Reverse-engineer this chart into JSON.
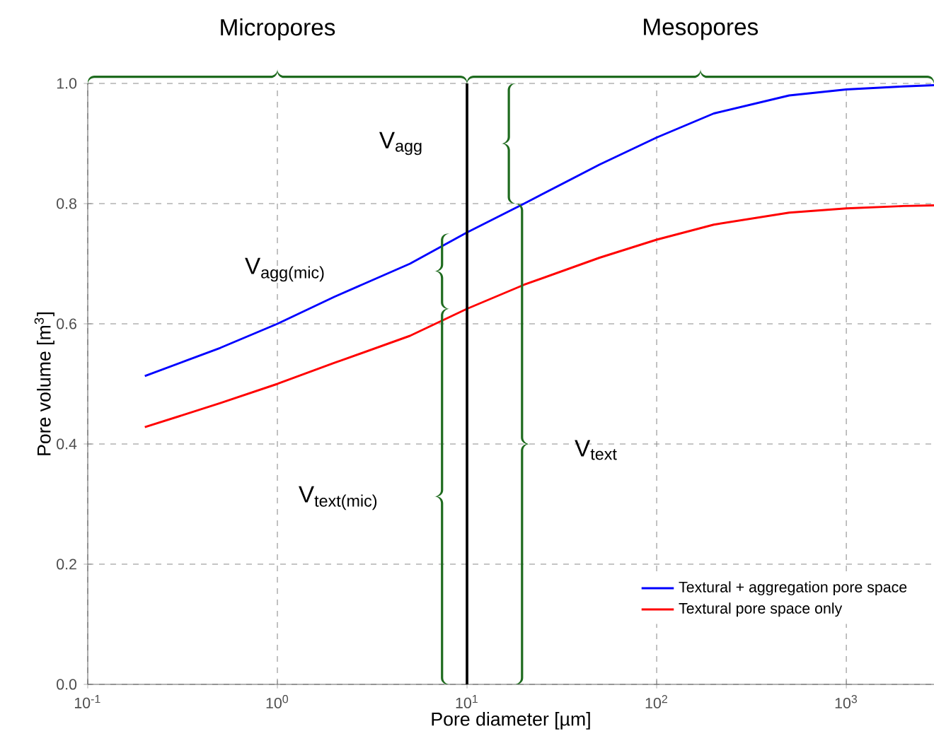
{
  "chart_data": {
    "type": "line",
    "xlabel": "Pore diameter [µm]",
    "ylabel": "Pore volume [m$^{3}$]",
    "log": "x",
    "xlim": [
      0.1,
      2900
    ],
    "ylim": [
      0,
      1.0
    ],
    "xticks": [
      {
        "value": 0.1,
        "label": "10$^{-1}$"
      },
      {
        "value": 1,
        "label": "10$^{0}$"
      },
      {
        "value": 10,
        "label": "10$^{1}$"
      },
      {
        "value": 100,
        "label": "10$^{2}$"
      },
      {
        "value": 1000,
        "label": "10$^{3}$"
      }
    ],
    "yticks": [
      {
        "value": 0,
        "label": "0.0"
      },
      {
        "value": 0.2,
        "label": "0.2"
      },
      {
        "value": 0.4,
        "label": "0.4"
      },
      {
        "value": 0.6,
        "label": "0.6"
      },
      {
        "value": 0.8,
        "label": "0.8"
      },
      {
        "value": 1.0,
        "label": "1.0"
      }
    ],
    "grid": true,
    "legend": "bottom right",
    "line_style": "solid",
    "marker": "none",
    "series": [
      {
        "name": "Textural + aggregation pore space",
        "color": "#0000ff",
        "x": [
          0.2,
          0.5,
          1,
          2,
          5,
          10,
          20,
          50,
          100,
          200,
          500,
          1000,
          2000,
          2900
        ],
        "values": [
          0.513,
          0.56,
          0.6,
          0.645,
          0.7,
          0.752,
          0.8,
          0.865,
          0.91,
          0.95,
          0.98,
          0.99,
          0.995,
          0.997
        ]
      },
      {
        "name": "Textural pore space only",
        "color": "#ff0000",
        "x": [
          0.2,
          0.5,
          1,
          2,
          5,
          10,
          20,
          50,
          100,
          200,
          500,
          1000,
          2000,
          2900
        ],
        "values": [
          0.428,
          0.468,
          0.5,
          0.535,
          0.58,
          0.625,
          0.665,
          0.71,
          0.74,
          0.765,
          0.785,
          0.792,
          0.796,
          0.797
        ]
      }
    ],
    "ref_lines": [
      {
        "axis": "x",
        "value": 10,
        "color": "#000000"
      }
    ],
    "annotations": [
      "Micropores",
      "Mesopores",
      "V$_{agg}$",
      "V$_{agg(mic)}$",
      "V$_{text(mic)}$",
      "V$_{text}$"
    ]
  }
}
